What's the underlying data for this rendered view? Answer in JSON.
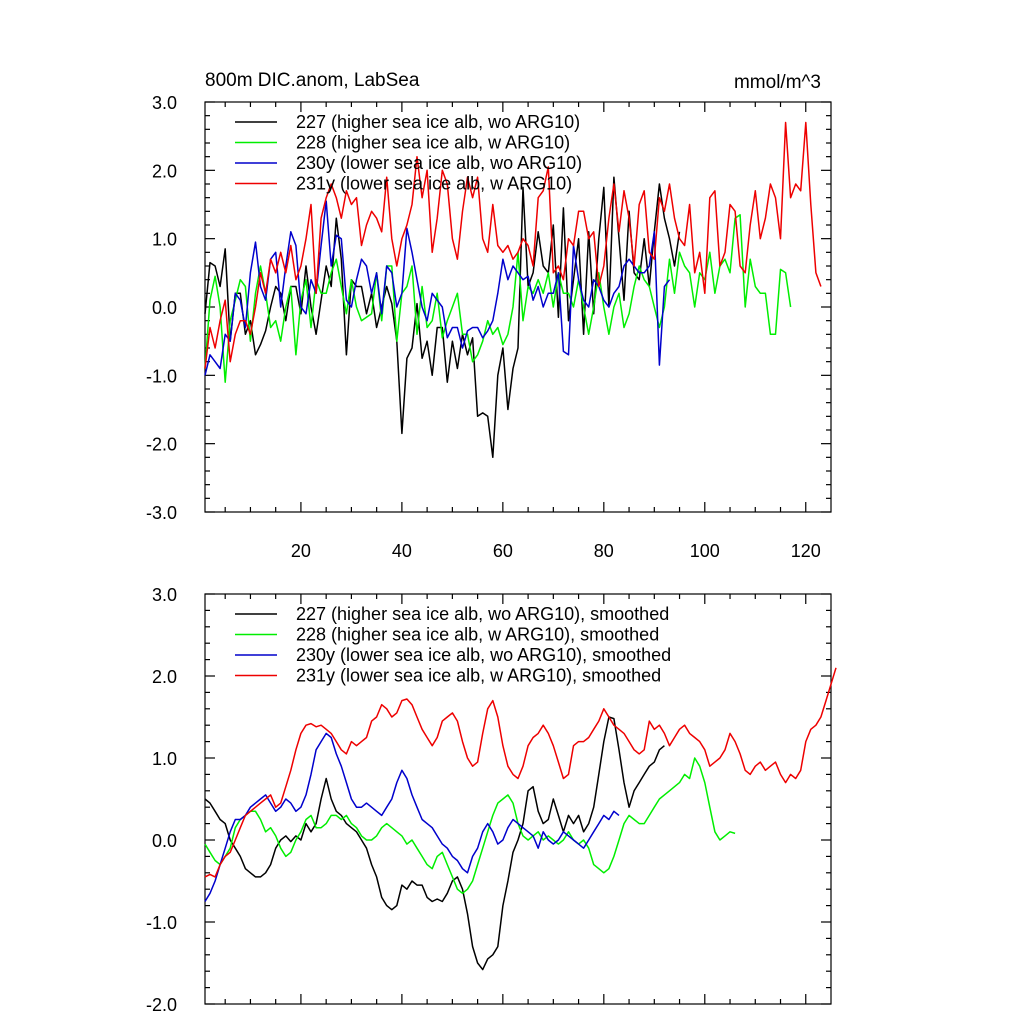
{
  "chart_data": [
    {
      "type": "line",
      "title": "800m DIC.anom, LabSea",
      "units": "mmol/m^3",
      "xlim": [
        1,
        125
      ],
      "ylim": [
        -3.0,
        3.0
      ],
      "xticks": [
        20,
        40,
        60,
        80,
        100,
        120
      ],
      "yticks": [
        -3.0,
        -2.0,
        -1.0,
        0.0,
        1.0,
        2.0,
        3.0
      ],
      "ytick_labels": [
        "-3.0",
        "-2.0",
        "-1.0",
        "0.0",
        "1.0",
        "2.0",
        "3.0"
      ],
      "legend_position": "top-left",
      "series": [
        {
          "name": "227 (higher sea ice alb, wo ARG10)",
          "color": "#000000",
          "values": [
            -0.1,
            0.65,
            0.6,
            0.3,
            0.85,
            -0.5,
            0.2,
            0.2,
            -0.4,
            -0.2,
            -0.7,
            -0.55,
            -0.35,
            0.0,
            0.3,
            0.2,
            -0.2,
            0.3,
            0.3,
            -0.1,
            0.6,
            0.0,
            -0.4,
            0.1,
            0.6,
            0.3,
            1.3,
            0.7,
            -0.7,
            0.4,
            0.3,
            0.3,
            -0.1,
            0.2,
            -0.3,
            0.0,
            0.3,
            0.05,
            -0.5,
            -1.85,
            -0.75,
            -0.6,
            0.05,
            -0.75,
            -0.5,
            -1.0,
            -0.3,
            -0.3,
            -1.1,
            -0.5,
            -0.9,
            -0.4,
            -0.7,
            -0.45,
            -1.6,
            -1.55,
            -1.6,
            -2.2,
            -1.0,
            -0.6,
            -1.5,
            -0.9,
            -0.6,
            1.75,
            0.3,
            0.5,
            1.1,
            0.6,
            0.5,
            1.2,
            -0.15,
            1.45,
            -0.2,
            0.4,
            1.0,
            -0.4,
            1.1,
            -0.1,
            1.0,
            1.75,
            0.0,
            1.9,
            1.0,
            0.1,
            1.4,
            0.5,
            0.4,
            1.0,
            0.3,
            1.1,
            1.8,
            1.3,
            1.0,
            0.6,
            1.1
          ]
        },
        {
          "name": "228 (higher sea ice alb, w ARG10)",
          "color": "#00ee00",
          "values": [
            -0.9,
            0.1,
            0.45,
            0.0,
            -1.1,
            -0.2,
            0.1,
            0.4,
            0.3,
            -0.5,
            0.2,
            0.6,
            0.2,
            -0.3,
            -0.2,
            -0.5,
            0.0,
            0.3,
            -0.7,
            0.1,
            0.4,
            -0.3,
            0.4,
            0.2,
            0.2,
            0.5,
            0.7,
            0.3,
            -0.1,
            0.4,
            0.0,
            -0.2,
            -0.15,
            -0.1,
            0.5,
            -0.2,
            0.6,
            0.6,
            -0.5,
            0.2,
            0.3,
            0.6,
            -0.4,
            0.3,
            -0.3,
            -0.2,
            0.2,
            -0.45,
            -0.2,
            0.0,
            0.2,
            -0.4,
            -0.4,
            -0.8,
            -0.7,
            -0.5,
            -0.2,
            -0.4,
            -0.3,
            -0.55,
            -0.4,
            0.0,
            0.8,
            -0.2,
            0.3,
            0.2,
            0.4,
            0.2,
            0.5,
            0.0,
            0.5,
            0.2,
            0.2,
            0.0,
            0.4,
            0.0,
            -0.4,
            0.0,
            0.5,
            0.0,
            -0.4,
            0.0,
            0.2,
            -0.3,
            -0.1,
            0.3,
            0.6,
            0.4,
            0.3,
            0.0,
            -0.3,
            0.0,
            0.7,
            0.2,
            0.8,
            0.6,
            0.5,
            0.0,
            0.5,
            0.4,
            0.8,
            0.2,
            0.6,
            0.7,
            0.5,
            1.3,
            1.35,
            0.0,
            0.7,
            0.3,
            0.2,
            0.2,
            -0.4,
            -0.4,
            0.55,
            0.5,
            0.0
          ]
        },
        {
          "name": "230y (lower sea ice alb, wo ARG10)",
          "color": "#0000cc",
          "values": [
            -1.0,
            -0.7,
            -0.8,
            -0.9,
            -0.4,
            -0.5,
            0.2,
            0.1,
            -0.3,
            0.5,
            0.95,
            0.3,
            0.1,
            0.7,
            0.8,
            0.0,
            0.6,
            1.1,
            0.9,
            0.0,
            -0.1,
            0.4,
            0.2,
            0.9,
            1.55,
            0.6,
            1.05,
            1.0,
            0.1,
            0.0,
            0.4,
            0.7,
            0.6,
            0.2,
            0.5,
            -0.1,
            0.6,
            0.5,
            0.0,
            0.2,
            1.15,
            0.8,
            0.4,
            0.0,
            -0.2,
            0.2,
            0.1,
            0.0,
            -0.45,
            -0.3,
            -0.3,
            -0.6,
            -0.35,
            -0.3,
            -0.3,
            -0.45,
            -0.35,
            -0.2,
            0.2,
            0.7,
            0.4,
            0.6,
            0.5,
            0.4,
            0.45,
            0.1,
            0.3,
            0.0,
            0.2,
            0.2,
            0.5,
            -0.65,
            -0.7,
            0.9,
            0.4,
            0.1,
            0.0,
            0.4,
            0.3,
            0.1,
            0.0,
            0.2,
            0.3,
            0.6,
            0.7,
            0.6,
            0.5,
            0.5,
            0.6,
            1.1,
            -0.85,
            0.3,
            0.4
          ]
        },
        {
          "name": "231y (lower sea ice alb, w ARG10)",
          "color": "#ee0000",
          "values": [
            -0.9,
            -0.3,
            -0.6,
            -0.2,
            0.1,
            -0.8,
            -0.4,
            -0.2,
            -0.2,
            -0.4,
            0.0,
            0.5,
            0.2,
            0.7,
            0.5,
            0.8,
            0.5,
            0.9,
            0.4,
            0.6,
            1.0,
            1.5,
            0.2,
            1.3,
            1.6,
            1.8,
            1.6,
            1.3,
            1.7,
            1.5,
            1.6,
            0.9,
            1.2,
            1.4,
            1.3,
            1.1,
            1.9,
            1.0,
            0.6,
            1.0,
            1.2,
            1.5,
            2.2,
            1.6,
            2.0,
            0.8,
            1.3,
            2.0,
            1.8,
            1.0,
            0.7,
            1.4,
            1.9,
            1.6,
            1.9,
            1.0,
            0.8,
            1.5,
            0.9,
            0.8,
            0.9,
            0.7,
            0.8,
            1.0,
            0.9,
            0.6,
            1.6,
            1.7,
            2.05,
            0.5,
            0.6,
            0.4,
            1.0,
            0.9,
            1.4,
            1.4,
            1.0,
            1.1,
            0.3,
            0.6,
            1.3,
            1.8,
            1.1,
            1.7,
            1.3,
            0.6,
            1.5,
            1.7,
            0.8,
            0.7,
            1.6,
            1.4,
            1.8,
            1.3,
            1.0,
            0.9,
            1.5,
            0.5,
            0.8,
            0.2,
            1.6,
            1.7,
            0.6,
            0.8,
            1.5,
            1.4,
            0.6,
            0.5,
            1.2,
            1.7,
            1.0,
            1.3,
            1.8,
            1.6,
            1.0,
            2.7,
            1.6,
            1.8,
            1.7,
            2.7,
            1.5,
            0.5,
            0.3
          ]
        }
      ]
    },
    {
      "type": "line",
      "title": "",
      "xlim": [
        1,
        125
      ],
      "ylim": [
        -2.0,
        3.0
      ],
      "yticks": [
        -2.0,
        -1.0,
        0.0,
        1.0,
        2.0,
        3.0
      ],
      "ytick_labels": [
        "-2.0",
        "-1.0",
        "0.0",
        "1.0",
        "2.0",
        "3.0"
      ],
      "legend_position": "top-left",
      "series": [
        {
          "name": "227 (higher sea ice alb, wo ARG10), smoothed",
          "color": "#000000",
          "values": [
            0.5,
            0.45,
            0.35,
            0.25,
            0.2,
            0.0,
            -0.1,
            -0.2,
            -0.35,
            -0.4,
            -0.45,
            -0.45,
            -0.4,
            -0.3,
            -0.1,
            0.0,
            0.05,
            -0.02,
            0.05,
            0.0,
            0.2,
            0.1,
            0.2,
            0.5,
            0.75,
            0.5,
            0.35,
            0.3,
            0.2,
            0.15,
            0.1,
            0.0,
            -0.1,
            -0.3,
            -0.45,
            -0.7,
            -0.8,
            -0.85,
            -0.8,
            -0.55,
            -0.6,
            -0.5,
            -0.55,
            -0.55,
            -0.7,
            -0.75,
            -0.72,
            -0.75,
            -0.65,
            -0.5,
            -0.45,
            -0.6,
            -0.9,
            -1.3,
            -1.5,
            -1.58,
            -1.45,
            -1.4,
            -1.3,
            -0.8,
            -0.5,
            -0.15,
            0.0,
            0.2,
            0.6,
            0.65,
            0.35,
            0.2,
            0.25,
            0.5,
            0.3,
            0.1,
            0.3,
            0.2,
            0.3,
            0.1,
            0.2,
            0.4,
            0.8,
            1.2,
            1.5,
            1.48,
            1.1,
            0.7,
            0.4,
            0.6,
            0.7,
            0.8,
            0.9,
            0.95,
            1.1,
            1.15
          ]
        },
        {
          "name": "228 (higher sea ice alb, w ARG10), smoothed",
          "color": "#00ee00",
          "values": [
            -0.05,
            -0.15,
            -0.25,
            -0.3,
            -0.2,
            -0.1,
            0.15,
            0.25,
            0.3,
            0.35,
            0.35,
            0.25,
            0.1,
            0.15,
            0.05,
            -0.1,
            -0.2,
            -0.15,
            0.0,
            0.1,
            0.25,
            0.3,
            0.15,
            0.15,
            0.2,
            0.3,
            0.3,
            0.25,
            0.3,
            0.2,
            0.15,
            0.05,
            0.0,
            0.0,
            0.05,
            0.15,
            0.2,
            0.15,
            0.1,
            0.05,
            -0.05,
            0.0,
            -0.1,
            -0.2,
            -0.3,
            -0.35,
            -0.2,
            -0.15,
            -0.3,
            -0.45,
            -0.6,
            -0.65,
            -0.6,
            -0.5,
            -0.3,
            -0.1,
            0.1,
            0.3,
            0.45,
            0.5,
            0.55,
            0.45,
            0.2,
            0.05,
            0.0,
            0.05,
            0.1,
            0.0,
            0.05,
            0.0,
            -0.05,
            0.0,
            0.1,
            0.0,
            -0.05,
            0.0,
            -0.1,
            -0.3,
            -0.35,
            -0.4,
            -0.35,
            -0.2,
            0.0,
            0.2,
            0.3,
            0.25,
            0.2,
            0.2,
            0.3,
            0.4,
            0.5,
            0.55,
            0.6,
            0.65,
            0.7,
            0.8,
            0.75,
            1.0,
            0.9,
            0.7,
            0.4,
            0.1,
            0.0,
            0.05,
            0.1,
            0.08
          ]
        },
        {
          "name": "230y (lower sea ice alb, wo ARG10), smoothed",
          "color": "#0000cc",
          "values": [
            -0.75,
            -0.65,
            -0.5,
            -0.3,
            -0.1,
            0.1,
            0.25,
            0.25,
            0.3,
            0.4,
            0.45,
            0.5,
            0.55,
            0.45,
            0.35,
            0.4,
            0.5,
            0.45,
            0.35,
            0.4,
            0.55,
            0.8,
            1.1,
            1.2,
            1.3,
            1.25,
            1.05,
            0.9,
            0.7,
            0.5,
            0.4,
            0.4,
            0.45,
            0.4,
            0.35,
            0.3,
            0.4,
            0.5,
            0.7,
            0.85,
            0.75,
            0.55,
            0.4,
            0.25,
            0.2,
            0.15,
            0.05,
            -0.05,
            -0.1,
            -0.2,
            -0.25,
            -0.35,
            -0.4,
            -0.2,
            -0.1,
            0.1,
            0.2,
            0.1,
            -0.05,
            0.0,
            0.15,
            0.25,
            0.2,
            0.15,
            0.1,
            0.05,
            -0.1,
            0.1,
            0.0,
            -0.05,
            0.0,
            0.1,
            0.05,
            0.0,
            -0.05,
            -0.1,
            0.0,
            0.1,
            0.2,
            0.3,
            0.25,
            0.35,
            0.3
          ]
        },
        {
          "name": "231y (lower sea ice alb, w ARG10), smoothed",
          "color": "#ee0000",
          "values": [
            -0.45,
            -0.42,
            -0.45,
            -0.3,
            -0.2,
            -0.15,
            0.0,
            0.15,
            0.3,
            0.35,
            0.4,
            0.45,
            0.5,
            0.55,
            0.4,
            0.45,
            0.65,
            0.85,
            1.1,
            1.3,
            1.4,
            1.42,
            1.38,
            1.4,
            1.35,
            1.3,
            1.2,
            1.1,
            1.05,
            1.2,
            1.15,
            1.2,
            1.25,
            1.45,
            1.5,
            1.65,
            1.6,
            1.5,
            1.55,
            1.7,
            1.72,
            1.65,
            1.5,
            1.35,
            1.25,
            1.15,
            1.25,
            1.45,
            1.5,
            1.55,
            1.45,
            1.2,
            1.0,
            0.9,
            0.95,
            1.3,
            1.6,
            1.7,
            1.5,
            1.15,
            0.9,
            0.8,
            0.75,
            0.9,
            1.15,
            1.25,
            1.3,
            1.4,
            1.3,
            1.15,
            0.95,
            0.75,
            0.8,
            1.15,
            1.2,
            1.2,
            1.25,
            1.35,
            1.45,
            1.6,
            1.5,
            1.4,
            1.35,
            1.3,
            1.2,
            1.1,
            1.05,
            1.1,
            1.45,
            1.35,
            1.4,
            1.3,
            1.15,
            1.25,
            1.35,
            1.4,
            1.3,
            1.25,
            1.2,
            1.1,
            0.9,
            0.95,
            1.0,
            1.1,
            1.3,
            1.2,
            1.05,
            0.85,
            0.8,
            0.9,
            0.95,
            0.85,
            0.9,
            0.95,
            0.8,
            0.7,
            0.8,
            0.75,
            0.85,
            1.2,
            1.35,
            1.4,
            1.5,
            1.7,
            1.9,
            2.1
          ]
        }
      ]
    }
  ]
}
